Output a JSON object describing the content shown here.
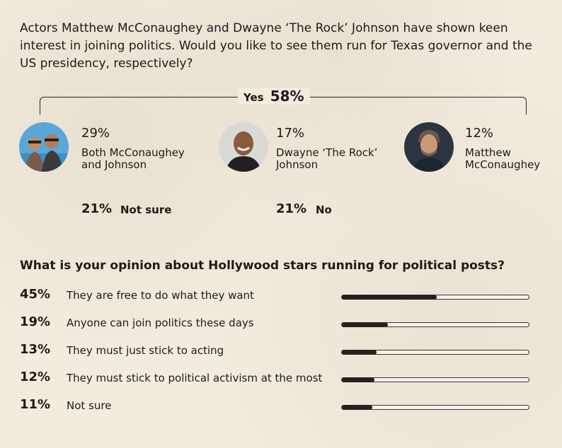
{
  "question1": "Actors Matthew McConaughey and Dwayne ‘The Rock’ Johnson have shown keen interest in joining politics. Would you like to see them run for Texas governor and the US presidency, respectively?",
  "yes": {
    "label": "Yes",
    "value": "58%"
  },
  "options": [
    {
      "pct": "29%",
      "label": "Both McConaughey and Johnson",
      "icon": "both-actors-avatar"
    },
    {
      "pct": "17%",
      "label": "Dwayne ‘The Rock’ Johnson",
      "icon": "dwayne-johnson-avatar"
    },
    {
      "pct": "12%",
      "label": "Matthew McConaughey",
      "icon": "matthew-mcconaughey-avatar"
    }
  ],
  "not_sure": {
    "pct": "21%",
    "label": "Not sure"
  },
  "no": {
    "pct": "21%",
    "label": "No"
  },
  "question2": "What is your opinion about Hollywood stars running for political posts?",
  "chart_data": [
    {
      "type": "bar",
      "title": "Actors Matthew McConaughey and Dwayne ‘The Rock’ Johnson have shown keen interest in joining politics. Would you like to see them run for Texas governor and the US presidency, respectively?",
      "categories": [
        "Both McConaughey and Johnson",
        "Dwayne ‘The Rock’ Johnson",
        "Matthew McConaughey",
        "Not sure",
        "No"
      ],
      "values": [
        29,
        17,
        12,
        21,
        21
      ],
      "group": {
        "label": "Yes",
        "value": 58,
        "members": [
          "Both McConaughey and Johnson",
          "Dwayne ‘The Rock’ Johnson",
          "Matthew McConaughey"
        ]
      }
    },
    {
      "type": "bar",
      "title": "What is your opinion about Hollywood stars running for political posts?",
      "categories": [
        "They are free to do what they want",
        "Anyone can join politics these days",
        "They must just stick to acting",
        "They must stick to political activism at the most",
        "Not sure"
      ],
      "values": [
        45,
        19,
        13,
        12,
        11
      ],
      "value_labels": [
        "45%",
        "19%",
        "13%",
        "12%",
        "11%"
      ],
      "ylim": [
        0,
        100
      ]
    }
  ],
  "colors": {
    "bar_fill": "#2a1f1c",
    "background": "#f2ecdf"
  }
}
